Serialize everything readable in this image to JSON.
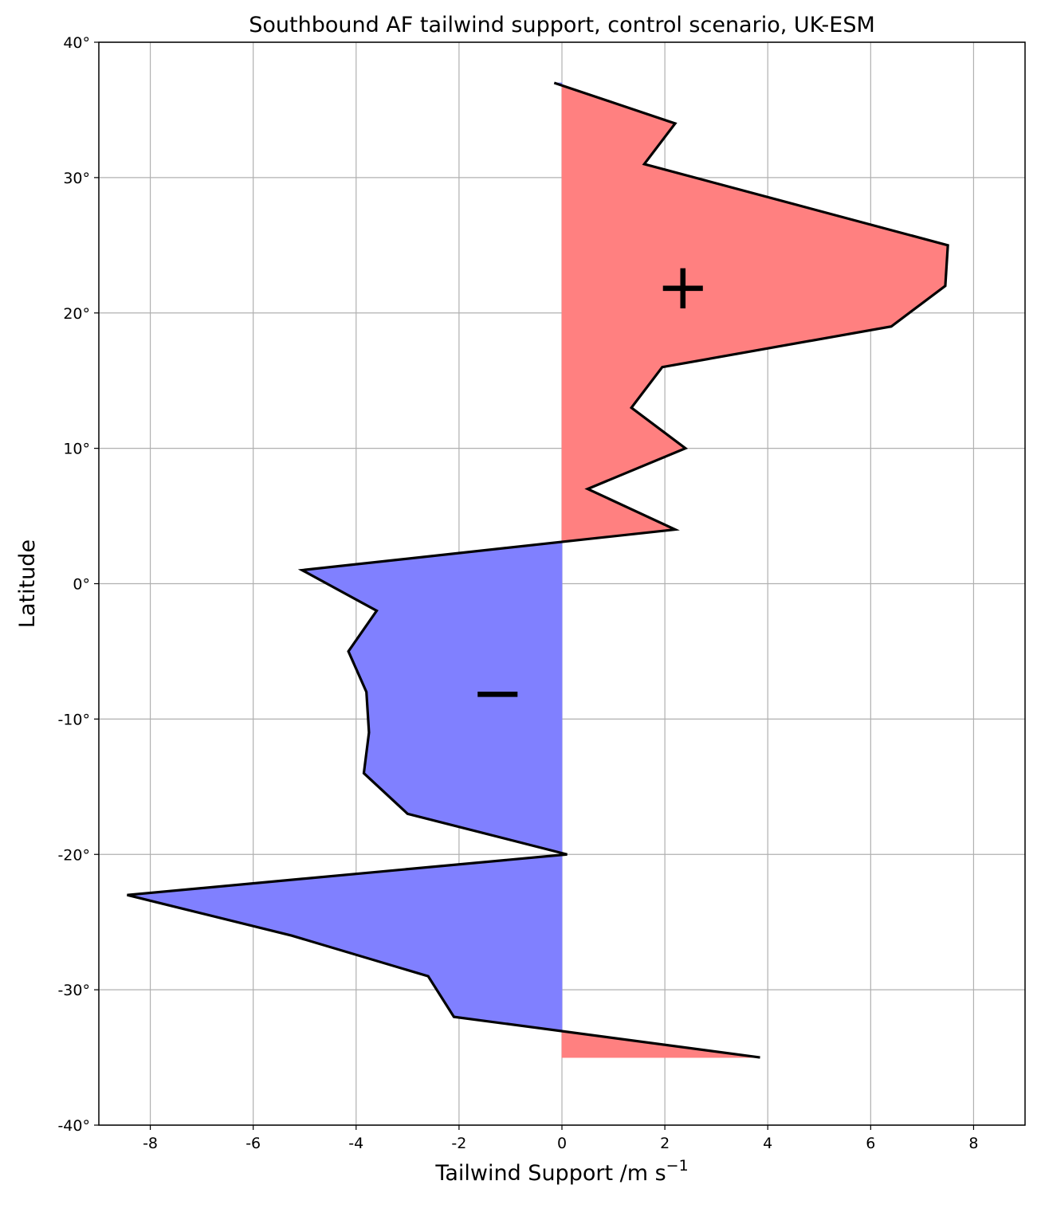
{
  "chart_data": {
    "type": "area",
    "orientation": "horizontal",
    "title": "Southbound AF tailwind support, control scenario, UK-ESM",
    "xlabel": "Tailwind Support /m s",
    "xlabel_superscript": "−1",
    "ylabel": "Latitude",
    "xlim": [
      -9,
      9
    ],
    "ylim": [
      -40,
      40
    ],
    "x_ticks": [
      -8,
      -6,
      -4,
      -2,
      0,
      2,
      4,
      6,
      8
    ],
    "x_tick_labels": [
      "-8",
      "-6",
      "-4",
      "-2",
      "0",
      "2",
      "4",
      "6",
      "8"
    ],
    "y_ticks": [
      40,
      30,
      20,
      10,
      0,
      -10,
      -20,
      -30,
      -40
    ],
    "y_tick_labels": [
      "40°",
      "30°",
      "20°",
      "10°",
      "0°",
      "-10°",
      "-20°",
      "-30°",
      "-40°"
    ],
    "grid": true,
    "series": [
      {
        "line_color": "#000000",
        "positive_fill": "#ff8080",
        "negative_fill": "#8080ff",
        "points": [
          {
            "lat": 37,
            "value": -0.15
          },
          {
            "lat": 34,
            "value": 2.2
          },
          {
            "lat": 31,
            "value": 1.6
          },
          {
            "lat": 25,
            "value": 7.5
          },
          {
            "lat": 22,
            "value": 7.45
          },
          {
            "lat": 19,
            "value": 6.4
          },
          {
            "lat": 16,
            "value": 1.95
          },
          {
            "lat": 13,
            "value": 1.35
          },
          {
            "lat": 10,
            "value": 2.4
          },
          {
            "lat": 7,
            "value": 0.5
          },
          {
            "lat": 4,
            "value": 2.2
          },
          {
            "lat": 1,
            "value": -5.05
          },
          {
            "lat": -2,
            "value": -3.6
          },
          {
            "lat": -5,
            "value": -4.15
          },
          {
            "lat": -8,
            "value": -3.8
          },
          {
            "lat": -11,
            "value": -3.75
          },
          {
            "lat": -14,
            "value": -3.85
          },
          {
            "lat": -17,
            "value": -3.0
          },
          {
            "lat": -20,
            "value": 0.1
          },
          {
            "lat": -23,
            "value": -8.45
          },
          {
            "lat": -26,
            "value": -5.25
          },
          {
            "lat": -29,
            "value": -2.6
          },
          {
            "lat": -32,
            "value": -2.1
          },
          {
            "lat": -35,
            "value": 3.85
          }
        ]
      }
    ],
    "annotations": [
      {
        "text": "+",
        "x": 2.35,
        "y": 22
      },
      {
        "text": "−",
        "x": -1.25,
        "y": -8
      }
    ]
  }
}
